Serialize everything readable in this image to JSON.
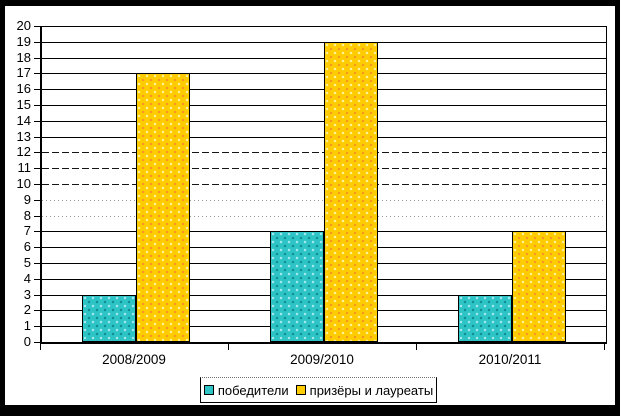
{
  "chart_data": {
    "type": "bar",
    "title": "",
    "xlabel": "",
    "ylabel": "",
    "categories": [
      "2008/2009",
      "2009/2010",
      "2010/2011"
    ],
    "series": [
      {
        "name": "победители",
        "color": "#2EC4C6",
        "dot_light": "#A8ECEC",
        "dot_dark": "#0B8C8E",
        "values": [
          3,
          7,
          3
        ]
      },
      {
        "name": "призёры и лауреаты",
        "color": "#FFCC00",
        "dot_light": "#FFF59E",
        "dot_dark": "#F79420",
        "values": [
          17,
          19,
          7
        ]
      }
    ],
    "ylim": [
      0,
      20
    ],
    "y_tick_step": 1,
    "y_ticks": [
      0,
      1,
      2,
      3,
      4,
      5,
      6,
      7,
      8,
      9,
      10,
      11,
      12,
      13,
      14,
      15,
      16,
      17,
      18,
      19,
      20
    ],
    "grid": "on",
    "gridline_styles": {
      "dashed": [
        10,
        11,
        12
      ],
      "dotted": [
        8,
        9
      ]
    },
    "legend_position": "bottom",
    "axis_color": "#000000",
    "plot_background": "#FFFFFF",
    "frame_color": "#000000"
  }
}
